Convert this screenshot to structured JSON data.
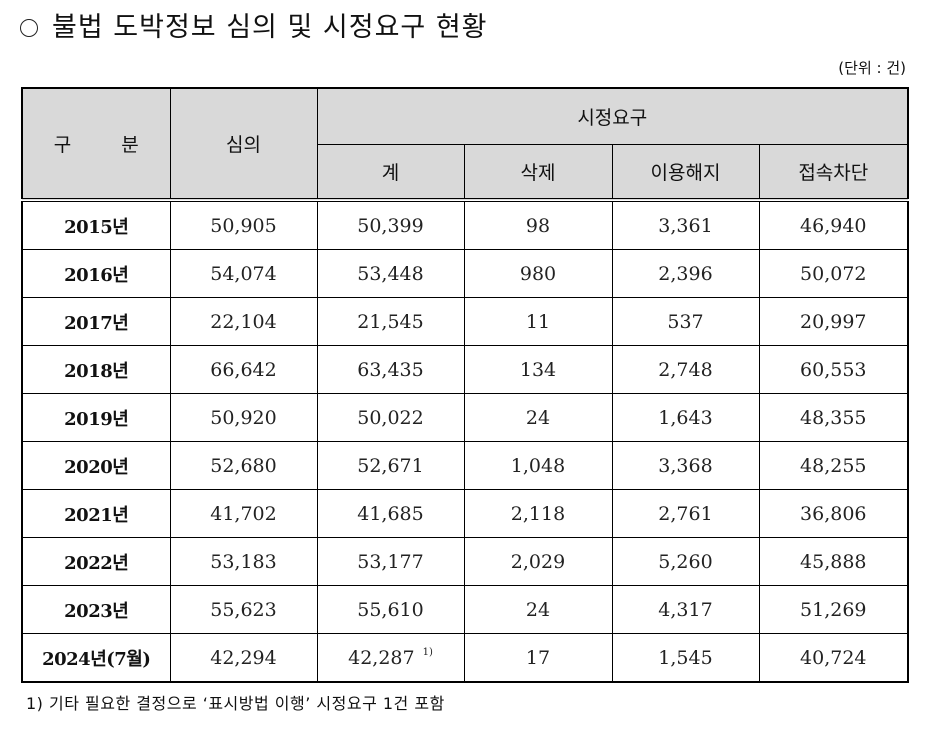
{
  "title": {
    "bullet_icon": "○",
    "text": "불법 도박정보 심의 및 시정요구 현황"
  },
  "unit_label": "(단위 : 건)",
  "table": {
    "headers": {
      "category": "구 분",
      "review": "심의",
      "correction_group": "시정요구",
      "total": "계",
      "deletion": "삭제",
      "suspension": "이용해지",
      "access_block": "접속차단"
    },
    "rows": [
      {
        "year": "2015년",
        "review": "50,905",
        "total": "50,399",
        "total_note": "",
        "deletion": "98",
        "suspension": "3,361",
        "access_block": "46,940"
      },
      {
        "year": "2016년",
        "review": "54,074",
        "total": "53,448",
        "total_note": "",
        "deletion": "980",
        "suspension": "2,396",
        "access_block": "50,072"
      },
      {
        "year": "2017년",
        "review": "22,104",
        "total": "21,545",
        "total_note": "",
        "deletion": "11",
        "suspension": "537",
        "access_block": "20,997"
      },
      {
        "year": "2018년",
        "review": "66,642",
        "total": "63,435",
        "total_note": "",
        "deletion": "134",
        "suspension": "2,748",
        "access_block": "60,553"
      },
      {
        "year": "2019년",
        "review": "50,920",
        "total": "50,022",
        "total_note": "",
        "deletion": "24",
        "suspension": "1,643",
        "access_block": "48,355"
      },
      {
        "year": "2020년",
        "review": "52,680",
        "total": "52,671",
        "total_note": "",
        "deletion": "1,048",
        "suspension": "3,368",
        "access_block": "48,255"
      },
      {
        "year": "2021년",
        "review": "41,702",
        "total": "41,685",
        "total_note": "",
        "deletion": "2,118",
        "suspension": "2,761",
        "access_block": "36,806"
      },
      {
        "year": "2022년",
        "review": "53,183",
        "total": "53,177",
        "total_note": "",
        "deletion": "2,029",
        "suspension": "5,260",
        "access_block": "45,888"
      },
      {
        "year": "2023년",
        "review": "55,623",
        "total": "55,610",
        "total_note": "",
        "deletion": "24",
        "suspension": "4,317",
        "access_block": "51,269"
      },
      {
        "year": "2024년(7월)",
        "review": "42,294",
        "total": "42,287",
        "total_note": "1)",
        "deletion": "17",
        "suspension": "1,545",
        "access_block": "40,724"
      }
    ]
  },
  "footnote": "1) 기타 필요한 결정으로 ‘표시방법 이행’ 시정요구 1건 포함",
  "colors": {
    "header_bg": "#d9d9d9",
    "border": "#000000"
  }
}
